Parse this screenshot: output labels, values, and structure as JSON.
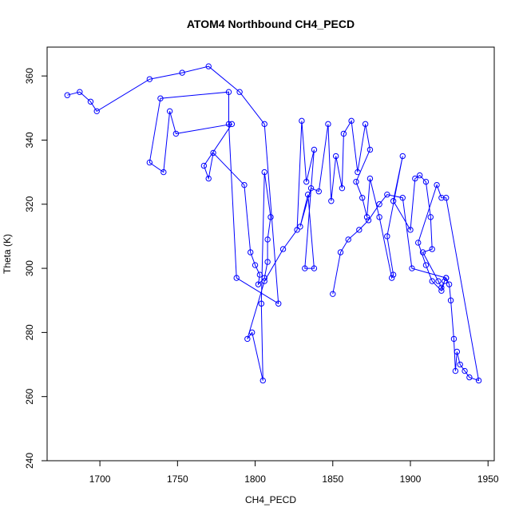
{
  "chart_data": {
    "type": "line",
    "title": "ATOM4 Northbound CH4_PECD",
    "xlabel": "CH4_PECD",
    "ylabel": "Theta (K)",
    "xlim": [
      1666,
      1954
    ],
    "ylim": [
      240,
      369
    ],
    "x_ticks": [
      1700,
      1750,
      1800,
      1850,
      1900,
      1950
    ],
    "y_ticks": [
      240,
      260,
      280,
      300,
      320,
      340,
      360
    ],
    "x_tick_labels": [
      "1700",
      "1750",
      "1800",
      "1850",
      "1900",
      "1950"
    ],
    "y_tick_labels": [
      "240",
      "260",
      "280",
      "300",
      "320",
      "340",
      "360"
    ],
    "grid": false,
    "legend": "none",
    "series_color": "#0000ff",
    "marker": "open-circle",
    "series": [
      {
        "x": [
          1679,
          1687,
          1694,
          1698,
          1732,
          1753,
          1770,
          1790,
          1806,
          1815,
          1788,
          1783,
          1783,
          1739,
          1732,
          1741,
          1745,
          1749,
          1785,
          1767,
          1770,
          1773,
          1793,
          1797,
          1800,
          1803,
          1802,
          1806,
          1808,
          1808,
          1810,
          1806,
          1804,
          1805,
          1798,
          1795,
          1806,
          1818,
          1827,
          1830,
          1833,
          1838,
          1832,
          1838,
          1834,
          1829,
          1836,
          1841,
          1847,
          1849,
          1852,
          1856,
          1857,
          1862,
          1866,
          1871,
          1874,
          1865,
          1869,
          1872,
          1874,
          1880,
          1888,
          1889,
          1885,
          1895,
          1889,
          1900,
          1903,
          1906,
          1910,
          1913,
          1914,
          1908,
          1918,
          1920,
          1923,
          1925,
          1926,
          1928,
          1929,
          1930,
          1932,
          1935,
          1938,
          1944,
          1923,
          1920,
          1917,
          1905,
          1910,
          1914,
          1920,
          1922,
          1923,
          1901,
          1895,
          1885,
          1880,
          1873,
          1867,
          1860,
          1855,
          1850
        ],
        "y": [
          354,
          355,
          352,
          349,
          359,
          361,
          363,
          355,
          345,
          289,
          297,
          345,
          355,
          353,
          333,
          330,
          349,
          342,
          345,
          332,
          328,
          336,
          326,
          305,
          301,
          298,
          295,
          297,
          302,
          309,
          316,
          330,
          289,
          265,
          280,
          278,
          296,
          306,
          312,
          346,
          327,
          337,
          300,
          300,
          323,
          313,
          325,
          324,
          345,
          321,
          335,
          325,
          342,
          346,
          330,
          345,
          337,
          327,
          322,
          316,
          328,
          316,
          297,
          298,
          310,
          335,
          321,
          312,
          328,
          329,
          327,
          316,
          306,
          305,
          296,
          294,
          297,
          295,
          290,
          278,
          268,
          274,
          270,
          268,
          266,
          265,
          322,
          322,
          326,
          308,
          301,
          296,
          293,
          296,
          297,
          300,
          322,
          323,
          320,
          315,
          312,
          309,
          305,
          292
        ]
      }
    ]
  }
}
